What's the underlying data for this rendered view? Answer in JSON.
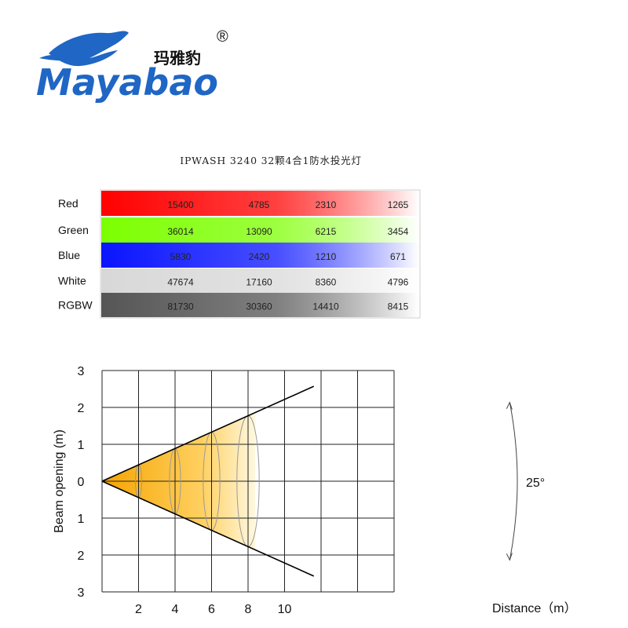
{
  "logo": {
    "brand": "Mayabao",
    "chinese": "玛雅豹",
    "registered": "®"
  },
  "title": "IPWASH 3240 32颗4合1防水投光灯",
  "table": {
    "rows": [
      {
        "label": "Red",
        "values": [
          "15400",
          "4785",
          "2310",
          "1265"
        ],
        "color": "#ff0000"
      },
      {
        "label": "Green",
        "values": [
          "36014",
          "13090",
          "6215",
          "3454"
        ],
        "color": "#7cff00"
      },
      {
        "label": "Blue",
        "values": [
          "5830",
          "2420",
          "1210",
          "671"
        ],
        "color": "#0a14ff"
      },
      {
        "label": "White",
        "values": [
          "47674",
          "17160",
          "8360",
          "4796"
        ],
        "color": "#d8d8d8"
      },
      {
        "label": "RGBW",
        "values": [
          "81730",
          "30360",
          "14410",
          "8415"
        ],
        "color": "#555555"
      }
    ]
  },
  "chart_data": {
    "type": "beam-diagram",
    "xlabel": "Distance（m）",
    "ylabel": "Beam opening (m)",
    "x_ticks": [
      "2",
      "4",
      "6",
      "8",
      "10"
    ],
    "y_ticks": [
      "3",
      "2",
      "1",
      "0",
      "1",
      "2",
      "3"
    ],
    "xlim": [
      0,
      10
    ],
    "ylim": [
      -3,
      3
    ],
    "grid": true,
    "beam_angle_label": "25°",
    "beam_angle_deg": 25,
    "beam_fill_colors": [
      "#f5a400",
      "#fff8e0"
    ],
    "beam_rings_at_distance": [
      2,
      4,
      6,
      8
    ]
  }
}
